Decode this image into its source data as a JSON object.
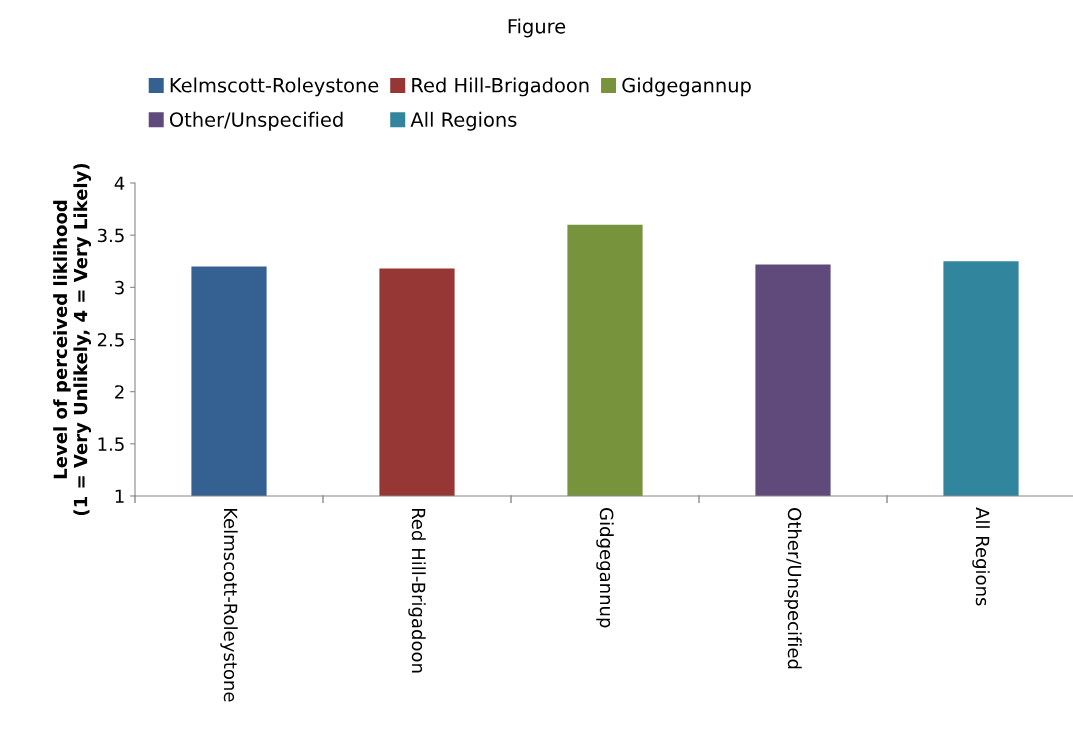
{
  "chart_data": {
    "type": "bar",
    "title": "Figure",
    "ylabel": "Level of perceived liklihood\n(1 = Very Unlikely, 4 = Very Likely)",
    "categories": [
      "Kelmscott-Roleystone",
      "Red Hill-Brigadoon",
      "Gidgegannup",
      "Other/Unspecified",
      "All Regions"
    ],
    "series": [
      {
        "name": "Kelmscott-Roleystone",
        "color": "#346092",
        "values": [
          3.2,
          null,
          null,
          null,
          null
        ]
      },
      {
        "name": "Red Hill-Brigadoon",
        "color": "#963735",
        "values": [
          null,
          3.18,
          null,
          null,
          null
        ]
      },
      {
        "name": "Gidgegannup",
        "color": "#77933c",
        "values": [
          null,
          null,
          3.6,
          null,
          null
        ]
      },
      {
        "name": "Other/Unspecified",
        "color": "#604a7b",
        "values": [
          null,
          null,
          null,
          3.22,
          null
        ]
      },
      {
        "name": "All Regions",
        "color": "#31859c",
        "values": [
          null,
          null,
          null,
          null,
          3.25
        ]
      }
    ],
    "ylim": [
      1,
      4
    ],
    "yticks": [
      1,
      1.5,
      2,
      2.5,
      3,
      3.5,
      4
    ],
    "grid": false,
    "legend": "top"
  }
}
